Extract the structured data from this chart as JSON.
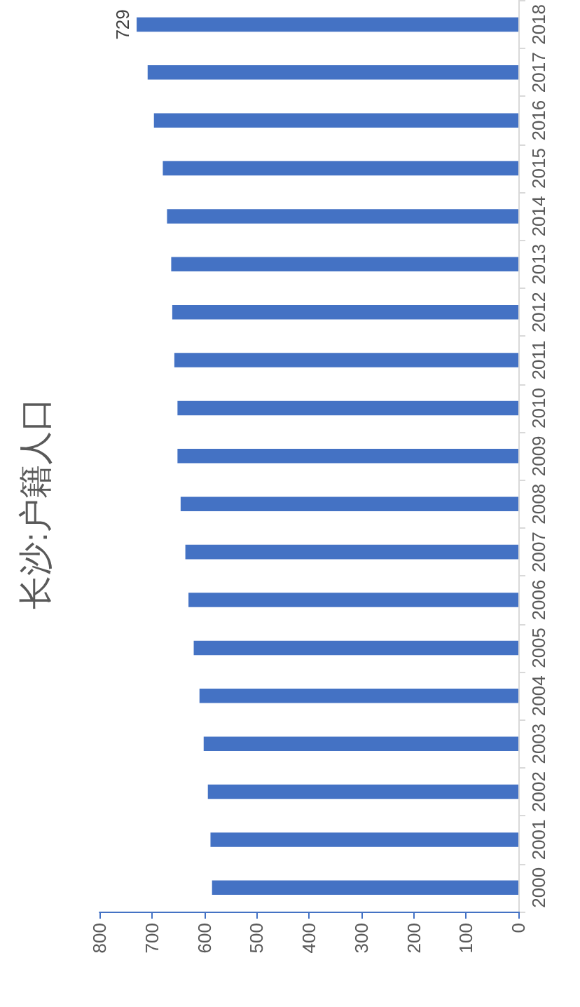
{
  "chart_data": {
    "type": "bar",
    "title": "长沙:户籍人口",
    "orientation": "horizontal",
    "categories": [
      "2018",
      "2017",
      "2016",
      "2015",
      "2014",
      "2013",
      "2012",
      "2011",
      "2010",
      "2009",
      "2008",
      "2007",
      "2006",
      "2005",
      "2004",
      "2003",
      "2002",
      "2001",
      "2000"
    ],
    "values": [
      729,
      708,
      696,
      679,
      671,
      663,
      661,
      657,
      651,
      651,
      645,
      636,
      630,
      620,
      609,
      601,
      593,
      588,
      585
    ],
    "value_labels": [
      "729",
      null,
      null,
      null,
      null,
      null,
      null,
      null,
      null,
      null,
      null,
      null,
      null,
      null,
      null,
      null,
      null,
      null,
      null
    ],
    "color": "#4472c4",
    "xlim": [
      800,
      0
    ],
    "xticks": [
      800,
      700,
      600,
      500,
      400,
      300,
      200,
      100,
      0
    ],
    "grid": false
  }
}
